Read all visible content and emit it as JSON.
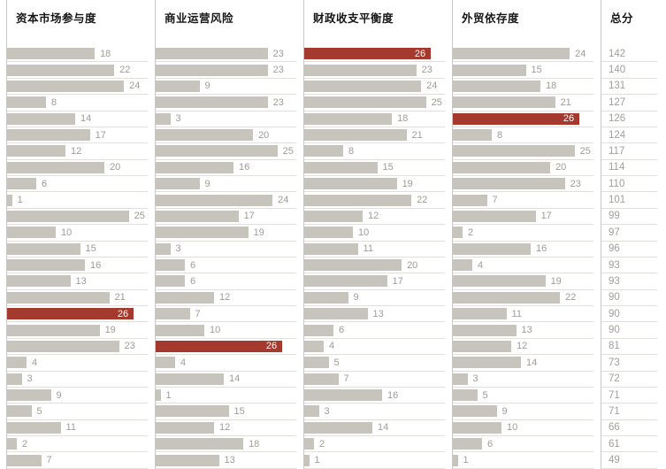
{
  "chart_data": {
    "type": "bar",
    "orientation": "horizontal",
    "max_value": 26,
    "highlight_value": 26,
    "bar_color": "#c7c3bd",
    "highlight_color": "#a43a2d",
    "grid": "row-lines",
    "legend_position": "none",
    "columns": [
      {
        "title": "资本市场参与度",
        "values": [
          18,
          22,
          24,
          8,
          14,
          17,
          12,
          20,
          6,
          1,
          25,
          10,
          15,
          16,
          13,
          21,
          26,
          19,
          23,
          4,
          3,
          9,
          5,
          11,
          2,
          7
        ]
      },
      {
        "title": "商业运营风险",
        "values": [
          23,
          23,
          9,
          23,
          3,
          20,
          25,
          16,
          9,
          24,
          17,
          19,
          3,
          6,
          6,
          12,
          7,
          10,
          26,
          4,
          14,
          1,
          15,
          12,
          18,
          13
        ]
      },
      {
        "title": "财政收支平衡度",
        "values": [
          26,
          23,
          24,
          25,
          18,
          21,
          8,
          15,
          19,
          22,
          12,
          10,
          11,
          20,
          17,
          9,
          13,
          6,
          4,
          5,
          7,
          16,
          3,
          14,
          2,
          1
        ]
      },
      {
        "title": "外贸依存度",
        "values": [
          24,
          15,
          18,
          21,
          26,
          8,
          25,
          20,
          23,
          7,
          17,
          2,
          16,
          4,
          19,
          22,
          11,
          13,
          12,
          14,
          3,
          5,
          9,
          10,
          6,
          1
        ]
      }
    ],
    "totals": {
      "title": "总分",
      "values": [
        142,
        140,
        131,
        127,
        126,
        124,
        117,
        114,
        110,
        101,
        99,
        97,
        96,
        93,
        93,
        90,
        90,
        90,
        81,
        73,
        72,
        71,
        71,
        66,
        61,
        49
      ]
    }
  }
}
